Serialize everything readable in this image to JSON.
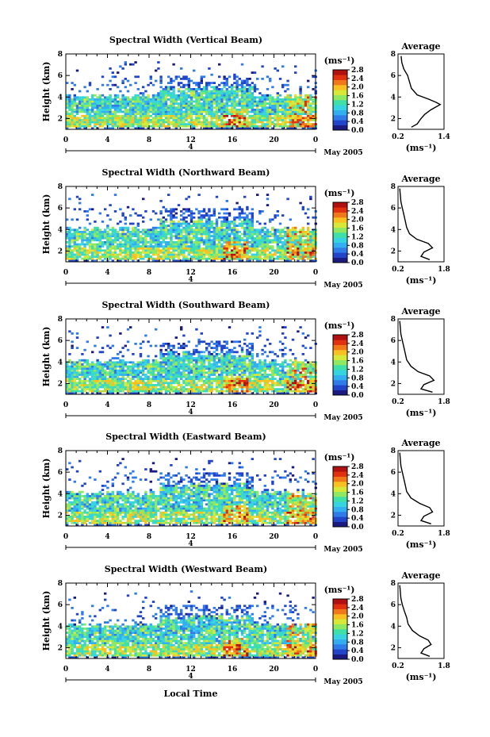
{
  "chart_data": [
    {
      "type": "heatmap",
      "title": "Spectral Width (Vertical Beam)",
      "ylabel": "Height (km)",
      "ylim": [
        1,
        8
      ],
      "y_ticks": [
        "2",
        "4",
        "6",
        "8"
      ],
      "xlim": [
        0,
        24
      ],
      "x_ticks": [
        "0",
        "4",
        "8",
        "12",
        "16",
        "20",
        "0"
      ],
      "date_marker": "4",
      "date_label": "May 2005",
      "colorbar": {
        "unit": "(ms⁻¹)",
        "ticks": [
          "0.0",
          "0.4",
          "0.8",
          "1.2",
          "1.6",
          "2.0",
          "2.4",
          "2.8"
        ]
      },
      "average": {
        "title": "Average",
        "x_ticks": [
          "0.2",
          "1.4"
        ],
        "xlabel": "(ms⁻¹)",
        "y_ticks": [
          "2",
          "4",
          "6",
          "8"
        ],
        "xlim": [
          0.2,
          1.4
        ],
        "profile": [
          [
            0.55,
            1.2
          ],
          [
            0.7,
            1.5
          ],
          [
            0.8,
            2.0
          ],
          [
            0.9,
            2.4
          ],
          [
            1.05,
            2.8
          ],
          [
            1.15,
            3.0
          ],
          [
            1.3,
            3.3
          ],
          [
            1.2,
            3.5
          ],
          [
            1.0,
            3.8
          ],
          [
            0.7,
            4.2
          ],
          [
            0.55,
            4.8
          ],
          [
            0.5,
            5.4
          ],
          [
            0.45,
            6.0
          ],
          [
            0.35,
            6.6
          ],
          [
            0.3,
            7.2
          ],
          [
            0.28,
            7.8
          ]
        ]
      }
    },
    {
      "type": "heatmap",
      "title": "Spectral Width (Northward Beam)",
      "ylabel": "Height (km)",
      "ylim": [
        1,
        8
      ],
      "y_ticks": [
        "2",
        "4",
        "6",
        "8"
      ],
      "xlim": [
        0,
        24
      ],
      "x_ticks": [
        "0",
        "4",
        "8",
        "12",
        "16",
        "20",
        "0"
      ],
      "date_marker": "4",
      "date_label": "May 2005",
      "colorbar": {
        "unit": "(ms⁻¹)",
        "ticks": [
          "0.0",
          "0.4",
          "0.8",
          "1.2",
          "1.6",
          "2.0",
          "2.4",
          "2.8"
        ]
      },
      "average": {
        "title": "Average",
        "x_ticks": [
          "0.2",
          "1.8"
        ],
        "xlabel": "(ms⁻¹)",
        "y_ticks": [
          "2",
          "4",
          "6",
          "8"
        ],
        "xlim": [
          0.2,
          1.8
        ],
        "profile": [
          [
            1.3,
            1.2
          ],
          [
            1.0,
            1.5
          ],
          [
            1.1,
            1.9
          ],
          [
            1.4,
            2.3
          ],
          [
            1.25,
            2.7
          ],
          [
            0.85,
            3.1
          ],
          [
            0.6,
            3.6
          ],
          [
            0.5,
            4.2
          ],
          [
            0.45,
            4.8
          ],
          [
            0.4,
            5.4
          ],
          [
            0.35,
            6.0
          ],
          [
            0.3,
            6.6
          ],
          [
            0.28,
            7.2
          ],
          [
            0.26,
            7.8
          ]
        ]
      }
    },
    {
      "type": "heatmap",
      "title": "Spectral Width (Southward Beam)",
      "ylabel": "Height (km)",
      "ylim": [
        1,
        8
      ],
      "y_ticks": [
        "2",
        "4",
        "6",
        "8"
      ],
      "xlim": [
        0,
        24
      ],
      "x_ticks": [
        "0",
        "4",
        "8",
        "12",
        "16",
        "20",
        "0"
      ],
      "date_marker": "4",
      "date_label": "May 2005",
      "colorbar": {
        "unit": "(ms⁻¹)",
        "ticks": [
          "0.0",
          "0.4",
          "0.8",
          "1.2",
          "1.6",
          "2.0",
          "2.4",
          "2.8"
        ]
      },
      "average": {
        "title": "Average",
        "x_ticks": [
          "0.2",
          "1.8"
        ],
        "xlabel": "(ms⁻¹)",
        "y_ticks": [
          "2",
          "4",
          "6",
          "8"
        ],
        "xlim": [
          0.2,
          1.8
        ],
        "profile": [
          [
            1.4,
            1.2
          ],
          [
            1.0,
            1.5
          ],
          [
            1.1,
            1.9
          ],
          [
            1.45,
            2.3
          ],
          [
            1.3,
            2.7
          ],
          [
            0.9,
            3.1
          ],
          [
            0.65,
            3.6
          ],
          [
            0.5,
            4.2
          ],
          [
            0.45,
            4.8
          ],
          [
            0.4,
            5.4
          ],
          [
            0.35,
            6.0
          ],
          [
            0.3,
            6.6
          ],
          [
            0.28,
            7.2
          ],
          [
            0.26,
            7.8
          ]
        ]
      }
    },
    {
      "type": "heatmap",
      "title": "Spectral Width (Eastward Beam)",
      "ylabel": "Height (km)",
      "ylim": [
        1,
        8
      ],
      "y_ticks": [
        "2",
        "4",
        "6",
        "8"
      ],
      "xlim": [
        0,
        24
      ],
      "x_ticks": [
        "0",
        "4",
        "8",
        "12",
        "16",
        "20",
        "0"
      ],
      "date_marker": "4",
      "date_label": "May 2005",
      "colorbar": {
        "unit": "(ms⁻¹)",
        "ticks": [
          "0.0",
          "0.4",
          "0.8",
          "1.2",
          "1.6",
          "2.0",
          "2.4",
          "2.8"
        ]
      },
      "average": {
        "title": "Average",
        "x_ticks": [
          "0.2",
          "1.8"
        ],
        "xlabel": "(ms⁻¹)",
        "y_ticks": [
          "2",
          "4",
          "6",
          "8"
        ],
        "xlim": [
          0.2,
          1.8
        ],
        "profile": [
          [
            1.35,
            1.2
          ],
          [
            1.0,
            1.5
          ],
          [
            1.1,
            1.9
          ],
          [
            1.4,
            2.3
          ],
          [
            1.3,
            2.7
          ],
          [
            0.95,
            3.1
          ],
          [
            0.65,
            3.6
          ],
          [
            0.5,
            4.2
          ],
          [
            0.45,
            4.8
          ],
          [
            0.4,
            5.4
          ],
          [
            0.35,
            6.0
          ],
          [
            0.3,
            6.6
          ],
          [
            0.28,
            7.2
          ],
          [
            0.26,
            7.8
          ]
        ]
      }
    },
    {
      "type": "heatmap",
      "title": "Spectral Width (Westward Beam)",
      "ylabel": "Height (km)",
      "ylim": [
        1,
        8
      ],
      "y_ticks": [
        "2",
        "4",
        "6",
        "8"
      ],
      "xlim": [
        0,
        24
      ],
      "x_ticks": [
        "0",
        "4",
        "8",
        "12",
        "16",
        "20",
        "0"
      ],
      "date_marker": "4",
      "date_label": "May 2005",
      "xlabel": "Local Time",
      "colorbar": {
        "unit": "(ms⁻¹)",
        "ticks": [
          "0.0",
          "0.4",
          "0.8",
          "1.2",
          "1.6",
          "2.0",
          "2.4",
          "2.8"
        ]
      },
      "average": {
        "title": "Average",
        "x_ticks": [
          "0.2",
          "1.8"
        ],
        "xlabel": "(ms⁻¹)",
        "y_ticks": [
          "2",
          "4",
          "6",
          "8"
        ],
        "xlim": [
          0.2,
          1.8
        ],
        "profile": [
          [
            1.3,
            1.2
          ],
          [
            1.0,
            1.5
          ],
          [
            1.1,
            1.9
          ],
          [
            1.35,
            2.3
          ],
          [
            1.25,
            2.7
          ],
          [
            0.95,
            3.1
          ],
          [
            0.7,
            3.6
          ],
          [
            0.55,
            4.2
          ],
          [
            0.5,
            4.8
          ],
          [
            0.42,
            5.4
          ],
          [
            0.35,
            6.0
          ],
          [
            0.3,
            6.6
          ],
          [
            0.28,
            7.2
          ],
          [
            0.26,
            7.8
          ]
        ]
      }
    }
  ]
}
